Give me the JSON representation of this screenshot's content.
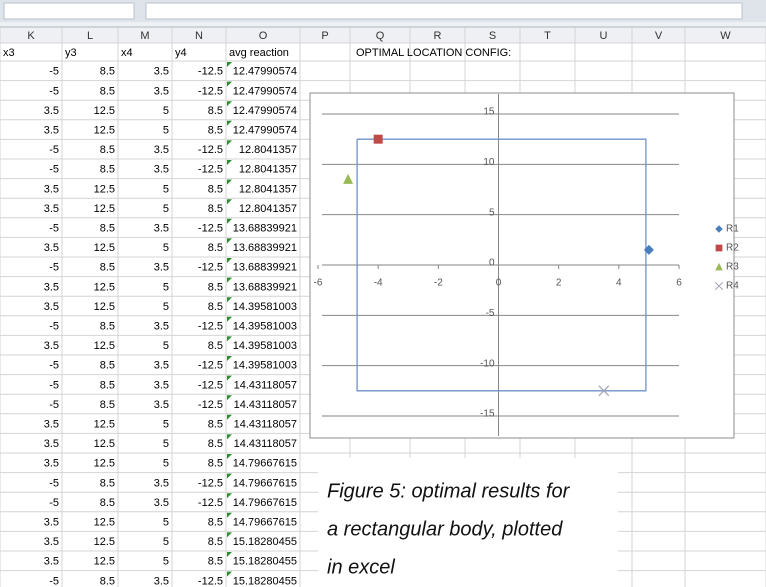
{
  "table": {
    "columns": [
      "K",
      "L",
      "M",
      "N",
      "O",
      "P",
      "Q",
      "R",
      "S",
      "T",
      "U",
      "V",
      "W"
    ],
    "header": [
      "x3",
      "y3",
      "x4",
      "y4",
      "avg reaction"
    ],
    "note": "OPTIMAL LOCATION CONFIG:",
    "rows": [
      [
        -5,
        8.5,
        3.5,
        -12.5,
        12.47990574
      ],
      [
        -5,
        8.5,
        3.5,
        -12.5,
        12.47990574
      ],
      [
        3.5,
        12.5,
        5,
        8.5,
        12.47990574
      ],
      [
        3.5,
        12.5,
        5,
        8.5,
        12.47990574
      ],
      [
        -5,
        8.5,
        3.5,
        -12.5,
        12.8041357
      ],
      [
        -5,
        8.5,
        3.5,
        -12.5,
        12.8041357
      ],
      [
        3.5,
        12.5,
        5,
        8.5,
        12.8041357
      ],
      [
        3.5,
        12.5,
        5,
        8.5,
        12.8041357
      ],
      [
        -5,
        8.5,
        3.5,
        -12.5,
        13.68839921
      ],
      [
        3.5,
        12.5,
        5,
        8.5,
        13.68839921
      ],
      [
        -5,
        8.5,
        3.5,
        -12.5,
        13.68839921
      ],
      [
        3.5,
        12.5,
        5,
        8.5,
        13.68839921
      ],
      [
        3.5,
        12.5,
        5,
        8.5,
        14.39581003
      ],
      [
        -5,
        8.5,
        3.5,
        -12.5,
        14.39581003
      ],
      [
        3.5,
        12.5,
        5,
        8.5,
        14.39581003
      ],
      [
        -5,
        8.5,
        3.5,
        -12.5,
        14.39581003
      ],
      [
        -5,
        8.5,
        3.5,
        -12.5,
        14.43118057
      ],
      [
        -5,
        8.5,
        3.5,
        -12.5,
        14.43118057
      ],
      [
        3.5,
        12.5,
        5,
        8.5,
        14.43118057
      ],
      [
        3.5,
        12.5,
        5,
        8.5,
        14.43118057
      ],
      [
        3.5,
        12.5,
        5,
        8.5,
        14.79667615
      ],
      [
        -5,
        8.5,
        3.5,
        -12.5,
        14.79667615
      ],
      [
        -5,
        8.5,
        3.5,
        -12.5,
        14.79667615
      ],
      [
        3.5,
        12.5,
        5,
        8.5,
        14.79667615
      ],
      [
        3.5,
        12.5,
        5,
        8.5,
        15.18280455
      ],
      [
        3.5,
        12.5,
        5,
        8.5,
        15.18280455
      ],
      [
        -5,
        8.5,
        3.5,
        -12.5,
        15.18280455
      ]
    ]
  },
  "chart_data": {
    "type": "scatter",
    "xlim": [
      -6,
      6
    ],
    "xticks": [
      -6,
      -4,
      -2,
      0,
      2,
      4,
      6
    ],
    "ylim": [
      -15,
      15
    ],
    "yticks": [
      -15,
      -10,
      -5,
      0,
      5,
      10,
      15
    ],
    "grid": true,
    "legend": "right",
    "outline": {
      "color": "#6f93c6",
      "x": [
        -4.7,
        4.9,
        4.9,
        -4.7,
        -4.7
      ],
      "values": [
        12.5,
        12.5,
        -12.5,
        -12.5,
        12.5
      ]
    },
    "series": [
      {
        "name": "R1",
        "color": "#4a7ebb",
        "marker": "diamond",
        "x": [
          5
        ],
        "values": [
          1.5
        ]
      },
      {
        "name": "R2",
        "color": "#be4b48",
        "marker": "square",
        "x": [
          -4
        ],
        "values": [
          12.5
        ]
      },
      {
        "name": "R3",
        "color": "#98b954",
        "marker": "triangle",
        "x": [
          -5
        ],
        "values": [
          8.5
        ]
      },
      {
        "name": "R4",
        "color": "#a5a5b5",
        "marker": "cross",
        "x": [
          3.5
        ],
        "values": [
          -12.5
        ]
      }
    ]
  },
  "caption": [
    "Figure 5: optimal results for",
    "a rectangular body, plotted",
    "in excel"
  ]
}
